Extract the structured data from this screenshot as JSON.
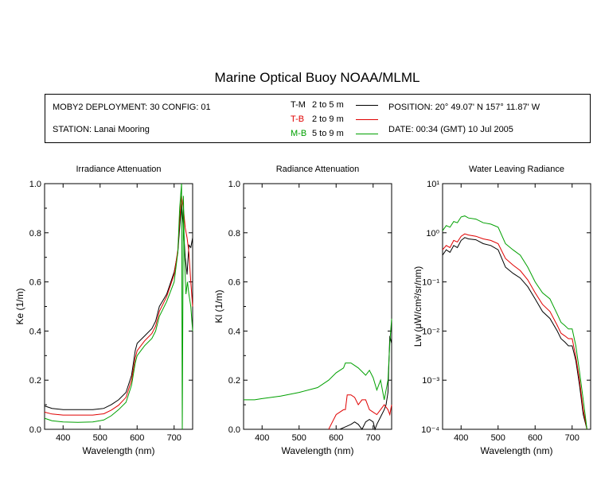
{
  "title": "Marine Optical Buoy NOAA/MLML",
  "info": {
    "deployment": "MOBY2 DEPLOYMENT: 30 CONFIG: 01",
    "station": "STATION: Lanai Mooring",
    "position": "POSITION: 20° 49.07' N   157° 11.87' W",
    "date": "DATE: 00:34 (GMT) 10 Jul 2005"
  },
  "legend": [
    {
      "code": "T-M",
      "range": "2 to 5  m",
      "color": "#000000"
    },
    {
      "code": "T-B",
      "range": "2 to 9  m",
      "color": "#e00000"
    },
    {
      "code": "M-B",
      "range": "5 to 9  m",
      "color": "#00a000"
    }
  ],
  "chart_data": [
    {
      "type": "line",
      "title": "Irradiance Attenuation",
      "xlabel": "Wavelength (nm)",
      "ylabel": "Ke  (1/m)",
      "xlim": [
        350,
        750
      ],
      "ylim": [
        0,
        1.0
      ],
      "xticks": [
        400,
        500,
        600,
        700
      ],
      "yticks": [
        "0.0",
        "0.2",
        "0.4",
        "0.6",
        "0.8",
        "1.0"
      ],
      "yscale": "linear",
      "series": [
        {
          "name": "T-M",
          "color": "#000000",
          "x": [
            350,
            370,
            400,
            440,
            480,
            510,
            530,
            550,
            570,
            585,
            595,
            600,
            620,
            640,
            650,
            660,
            680,
            700,
            710,
            715,
            720,
            725,
            730,
            735,
            740,
            745,
            750
          ],
          "y": [
            0.095,
            0.085,
            0.08,
            0.08,
            0.08,
            0.085,
            0.1,
            0.12,
            0.15,
            0.22,
            0.32,
            0.35,
            0.38,
            0.41,
            0.44,
            0.5,
            0.55,
            0.64,
            0.72,
            0.82,
            0.92,
            0.82,
            0.7,
            0.63,
            0.75,
            0.74,
            0.78
          ]
        },
        {
          "name": "T-B",
          "color": "#e00000",
          "x": [
            350,
            370,
            400,
            440,
            480,
            510,
            530,
            550,
            570,
            585,
            595,
            600,
            620,
            640,
            650,
            660,
            680,
            700,
            710,
            715,
            720,
            725,
            730,
            735,
            740,
            745,
            750
          ],
          "y": [
            0.07,
            0.062,
            0.058,
            0.058,
            0.058,
            0.063,
            0.078,
            0.098,
            0.13,
            0.2,
            0.29,
            0.32,
            0.36,
            0.39,
            0.42,
            0.48,
            0.54,
            0.63,
            0.73,
            0.85,
            0.95,
            0.9,
            0.82,
            0.78,
            0.72,
            0.6,
            0.5
          ]
        },
        {
          "name": "M-B",
          "color": "#00a000",
          "x": [
            350,
            370,
            400,
            440,
            480,
            510,
            530,
            550,
            570,
            585,
            595,
            600,
            620,
            640,
            650,
            660,
            680,
            700,
            710,
            715,
            720,
            722,
            725,
            728,
            732,
            736,
            740,
            745,
            750
          ],
          "y": [
            0.045,
            0.035,
            0.03,
            0.028,
            0.03,
            0.038,
            0.055,
            0.08,
            0.11,
            0.18,
            0.27,
            0.3,
            0.34,
            0.37,
            0.4,
            0.46,
            0.52,
            0.6,
            0.72,
            0.9,
            1.0,
            0.0,
            0.95,
            0.7,
            0.55,
            0.6,
            0.55,
            0.5,
            0.4
          ]
        }
      ]
    },
    {
      "type": "line",
      "title": "Radiance Attenuation",
      "xlabel": "Wavelength (nm)",
      "ylabel": "Kl  (1/m)",
      "xlim": [
        350,
        750
      ],
      "ylim": [
        0,
        1.0
      ],
      "xticks": [
        400,
        500,
        600,
        700
      ],
      "yticks": [
        "0.0",
        "0.2",
        "0.4",
        "0.6",
        "0.8",
        "1.0"
      ],
      "yscale": "linear",
      "series": [
        {
          "name": "T-M",
          "color": "#000000",
          "x": [
            610,
            625,
            640,
            650,
            660,
            670,
            680,
            690,
            700,
            705,
            710,
            720,
            730,
            735,
            740,
            745,
            750
          ],
          "y": [
            0.0,
            0.01,
            0.02,
            0.03,
            0.02,
            0.0,
            0.03,
            0.04,
            0.03,
            0.0,
            0.02,
            0.05,
            0.08,
            0.1,
            0.15,
            0.38,
            0.35
          ]
        },
        {
          "name": "T-B",
          "color": "#e00000",
          "x": [
            580,
            590,
            600,
            610,
            620,
            625,
            630,
            640,
            650,
            660,
            670,
            680,
            690,
            700,
            710,
            720,
            730,
            740,
            745,
            750
          ],
          "y": [
            0.0,
            0.03,
            0.06,
            0.07,
            0.08,
            0.08,
            0.14,
            0.14,
            0.13,
            0.1,
            0.12,
            0.12,
            0.08,
            0.07,
            0.06,
            0.08,
            0.1,
            0.08,
            0.06,
            0.1
          ]
        },
        {
          "name": "M-B",
          "color": "#00a000",
          "x": [
            350,
            380,
            400,
            450,
            500,
            550,
            580,
            600,
            620,
            625,
            640,
            650,
            660,
            680,
            690,
            700,
            710,
            720,
            730,
            740,
            745,
            750
          ],
          "y": [
            0.12,
            0.12,
            0.125,
            0.135,
            0.15,
            0.17,
            0.2,
            0.23,
            0.25,
            0.27,
            0.27,
            0.26,
            0.25,
            0.22,
            0.24,
            0.21,
            0.16,
            0.2,
            0.12,
            0.2,
            0.35,
            0.45
          ]
        }
      ]
    },
    {
      "type": "line",
      "title": "Water Leaving Radiance",
      "xlabel": "Wavelength (nm)",
      "ylabel": "Lw  (μW/cm²/sr/nm)",
      "xlim": [
        350,
        750
      ],
      "ylim": [
        0.0001,
        10
      ],
      "xticks": [
        400,
        500,
        600,
        700
      ],
      "yticks": [
        "10⁻⁴",
        "10⁻³",
        "10⁻²",
        "10⁻¹",
        "10⁰",
        "10¹"
      ],
      "yscale": "log",
      "series": [
        {
          "name": "T-M",
          "color": "#000000",
          "x": [
            350,
            360,
            370,
            380,
            390,
            400,
            410,
            420,
            440,
            460,
            480,
            500,
            520,
            540,
            560,
            580,
            600,
            620,
            640,
            660,
            670,
            680,
            690,
            700,
            710,
            720,
            730,
            740
          ],
          "y": [
            0.35,
            0.45,
            0.4,
            0.55,
            0.5,
            0.7,
            0.8,
            0.75,
            0.72,
            0.6,
            0.55,
            0.45,
            0.2,
            0.15,
            0.12,
            0.08,
            0.045,
            0.025,
            0.018,
            0.01,
            0.007,
            0.006,
            0.005,
            0.005,
            0.0025,
            0.0008,
            0.0002,
            0.0001
          ]
        },
        {
          "name": "T-B",
          "color": "#e00000",
          "x": [
            350,
            360,
            370,
            380,
            390,
            400,
            410,
            420,
            440,
            460,
            480,
            500,
            520,
            540,
            560,
            580,
            600,
            620,
            640,
            660,
            670,
            680,
            690,
            700,
            710,
            720,
            730,
            740
          ],
          "y": [
            0.45,
            0.55,
            0.5,
            0.7,
            0.65,
            0.85,
            0.95,
            0.9,
            0.85,
            0.75,
            0.7,
            0.6,
            0.3,
            0.22,
            0.17,
            0.11,
            0.06,
            0.035,
            0.025,
            0.013,
            0.009,
            0.008,
            0.007,
            0.007,
            0.003,
            0.001,
            0.00025,
            0.0001
          ]
        },
        {
          "name": "M-B",
          "color": "#00a000",
          "x": [
            350,
            360,
            370,
            380,
            390,
            400,
            410,
            420,
            440,
            460,
            480,
            500,
            520,
            540,
            560,
            580,
            600,
            620,
            640,
            660,
            670,
            680,
            690,
            700,
            710,
            720,
            730,
            740
          ],
          "y": [
            1.1,
            1.4,
            1.3,
            1.7,
            1.6,
            2.1,
            2.2,
            2.0,
            1.9,
            1.6,
            1.5,
            1.3,
            0.6,
            0.45,
            0.35,
            0.2,
            0.1,
            0.06,
            0.045,
            0.022,
            0.015,
            0.013,
            0.011,
            0.011,
            0.005,
            0.0015,
            0.0004,
            0.0001
          ]
        }
      ]
    }
  ]
}
